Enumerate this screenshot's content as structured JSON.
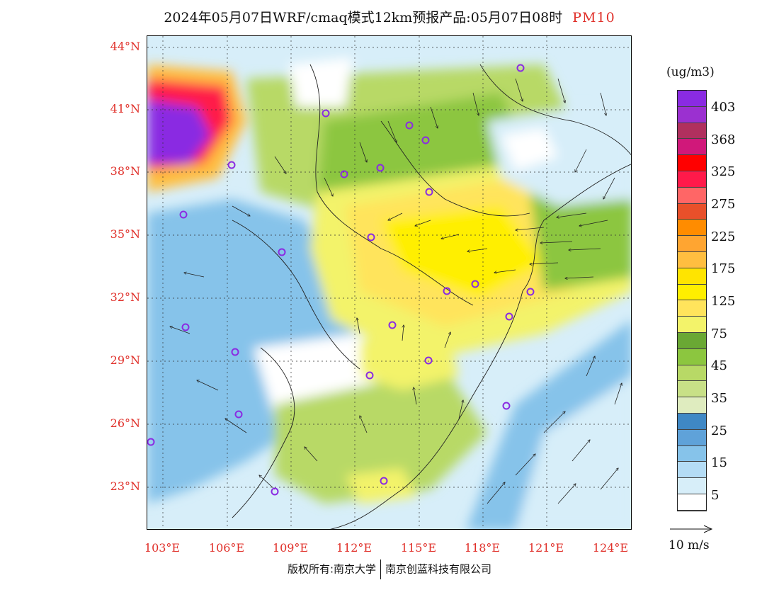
{
  "header": {
    "title": "2024年05月07日WRF/cmaq模式12km预报产品:05月07日08时",
    "pollutant": "PM10"
  },
  "map": {
    "lat_labels": [
      "44°N",
      "41°N",
      "38°N",
      "35°N",
      "32°N",
      "29°N",
      "26°N",
      "23°N"
    ],
    "lon_labels": [
      "103°E",
      "106°E",
      "109°E",
      "112°E",
      "115°E",
      "118°E",
      "121°E",
      "124°E"
    ],
    "label_color": "#e0302a",
    "city_marker_color": "#8a2be2"
  },
  "legend": {
    "units": "(ug/m3)",
    "colors": [
      "#8a2be2",
      "#9b30d0",
      "#b0305e",
      "#d0187a",
      "#ff0000",
      "#ff1a4a",
      "#ff6666",
      "#e8502a",
      "#ff8c00",
      "#ffa531",
      "#ffbe40",
      "#ffe400",
      "#ffef00",
      "#ffe45c",
      "#f3f36a",
      "#6aa834",
      "#8cc63f",
      "#b8d966",
      "#c8e087",
      "#dfecbf",
      "#3f88c5",
      "#5fa2d9",
      "#86c3ea",
      "#b4dcf5",
      "#d7eef9",
      "#ffffff"
    ],
    "labels": [
      "403",
      "368",
      "325",
      "275",
      "225",
      "175",
      "125",
      "75",
      "45",
      "35",
      "25",
      "15",
      "5"
    ]
  },
  "vector_reference": {
    "label": "10 m/s"
  },
  "footer": {
    "copyright_left": "版权所有:南京大学",
    "copyright_right": "南京创蓝科技有限公司"
  }
}
